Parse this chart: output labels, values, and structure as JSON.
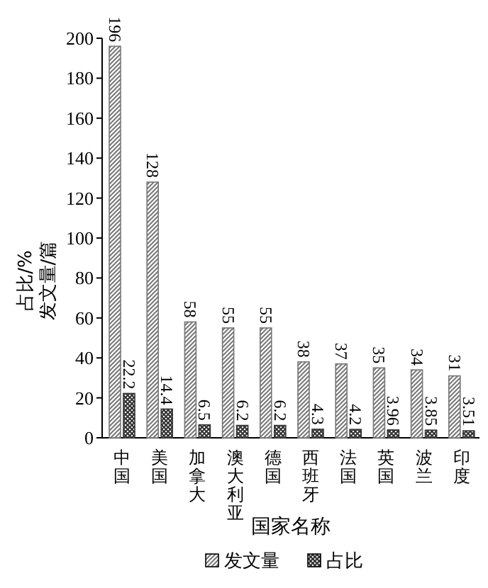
{
  "chart_data": {
    "type": "bar",
    "xlabel": "国家名称",
    "ylabel": "占比/%\n发文量/篇",
    "categories": [
      "中国",
      "美国",
      "加拿大",
      "澳大利亚",
      "德国",
      "西班牙",
      "法国",
      "英国",
      "波兰",
      "印度"
    ],
    "series": [
      {
        "name": "发文量",
        "color": "#777777",
        "values": [
          196,
          128,
          58,
          55,
          55,
          38,
          37,
          35,
          34,
          31
        ]
      },
      {
        "name": "占比",
        "color": "#333333",
        "values": [
          22.2,
          14.4,
          6.5,
          6.2,
          6.2,
          4.3,
          4.2,
          3.96,
          3.85,
          3.51
        ]
      }
    ],
    "ylim": [
      0,
      200
    ],
    "yticks": [
      0,
      20,
      40,
      60,
      80,
      100,
      120,
      140,
      160,
      180,
      200
    ],
    "data_labels": true,
    "legend": "bottom"
  }
}
